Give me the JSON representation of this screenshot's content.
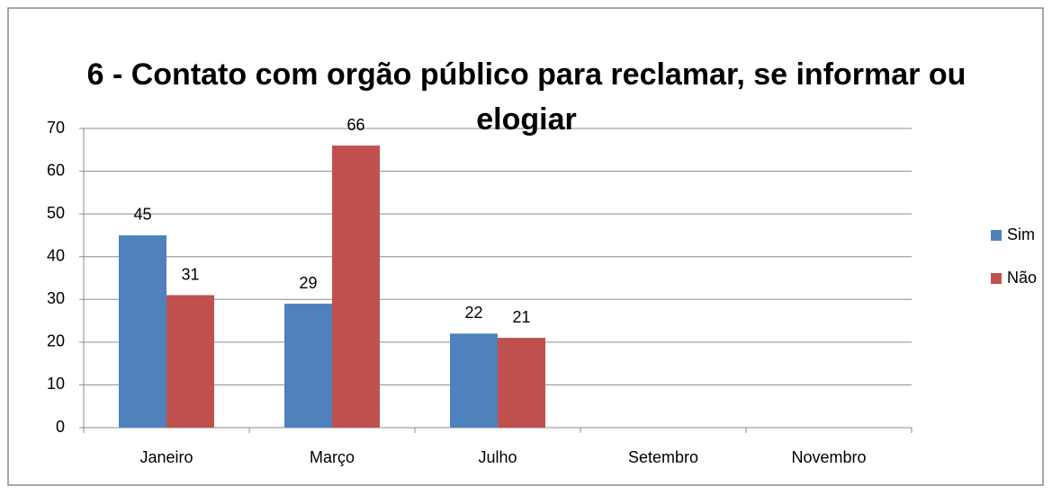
{
  "chart_data": {
    "type": "bar",
    "title": "6 - Contato com orgão público para reclamar, se informar ou elogiar",
    "categories": [
      "Janeiro",
      "Março",
      "Julho",
      "Setembro",
      "Novembro"
    ],
    "series": [
      {
        "name": "Sim",
        "color": "#4f81bd",
        "values": [
          45,
          29,
          22,
          null,
          null
        ]
      },
      {
        "name": "Não",
        "color": "#c0504d",
        "values": [
          31,
          66,
          21,
          null,
          null
        ]
      }
    ],
    "ylim": [
      0,
      70
    ],
    "yticks": [
      0,
      10,
      20,
      30,
      40,
      50,
      60,
      70
    ],
    "grid": true,
    "legend": "right"
  }
}
